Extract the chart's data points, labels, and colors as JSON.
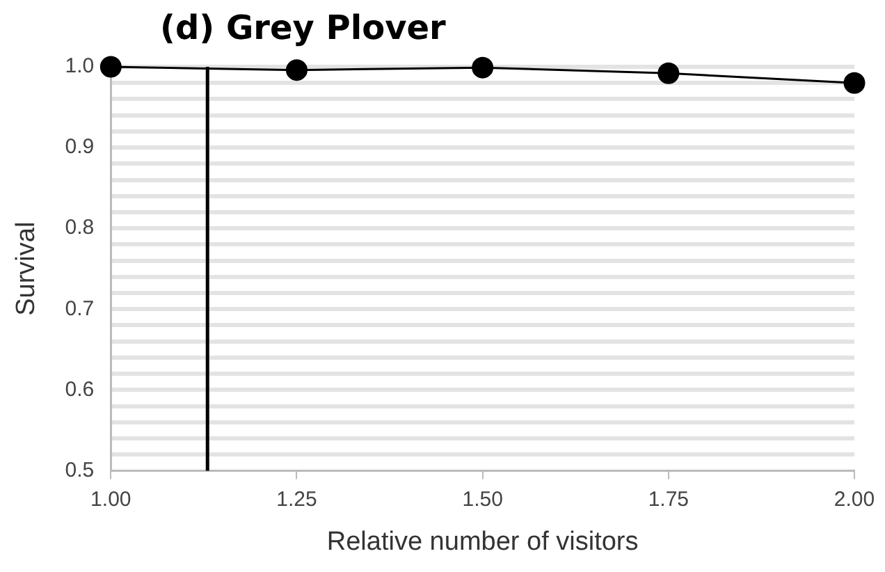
{
  "chart_data": {
    "type": "line",
    "title": "(d) Grey Plover",
    "xlabel": "Relative number of visitors",
    "ylabel": "Survival",
    "x": [
      1,
      1.25,
      1.5,
      1.75,
      2
    ],
    "series": [
      {
        "color": "#000000",
        "values": [
          1.0,
          0.996,
          0.999,
          0.992,
          0.98
        ]
      }
    ],
    "xlim": [
      1,
      2
    ],
    "ylim": [
      0.5,
      1.0
    ],
    "xticks": [
      {
        "value": 1,
        "label": "1.00"
      },
      {
        "value": 1.25,
        "label": "1.25"
      },
      {
        "value": 1.5,
        "label": "1.50"
      },
      {
        "value": 1.75,
        "label": "1.75"
      },
      {
        "value": 2,
        "label": "2.00"
      }
    ],
    "yticks": [
      {
        "value": 0.5,
        "label": "0.5"
      },
      {
        "value": 0.52,
        "label": null
      },
      {
        "value": 0.54,
        "label": null
      },
      {
        "value": 0.56,
        "label": null
      },
      {
        "value": 0.58,
        "label": null
      },
      {
        "value": 0.6,
        "label": "0.6"
      },
      {
        "value": 0.62,
        "label": null
      },
      {
        "value": 0.64,
        "label": null
      },
      {
        "value": 0.66,
        "label": null
      },
      {
        "value": 0.68,
        "label": null
      },
      {
        "value": 0.7,
        "label": "0.7"
      },
      {
        "value": 0.72,
        "label": null
      },
      {
        "value": 0.74,
        "label": null
      },
      {
        "value": 0.76,
        "label": null
      },
      {
        "value": 0.78,
        "label": null
      },
      {
        "value": 0.8,
        "label": "0.8"
      },
      {
        "value": 0.82,
        "label": null
      },
      {
        "value": 0.84,
        "label": null
      },
      {
        "value": 0.86,
        "label": null
      },
      {
        "value": 0.88,
        "label": null
      },
      {
        "value": 0.9,
        "label": "0.9"
      },
      {
        "value": 0.92,
        "label": null
      },
      {
        "value": 0.94,
        "label": null
      },
      {
        "value": 0.96,
        "label": null
      },
      {
        "value": 0.98,
        "label": null
      },
      {
        "value": 1.0,
        "label": "1.0"
      }
    ],
    "ref_lines": [
      {
        "axis": "x",
        "value": 1.13,
        "label": null,
        "color": "#000000"
      }
    ],
    "grid": "y",
    "legend": false,
    "marker": "circle",
    "line_style": "solid"
  }
}
